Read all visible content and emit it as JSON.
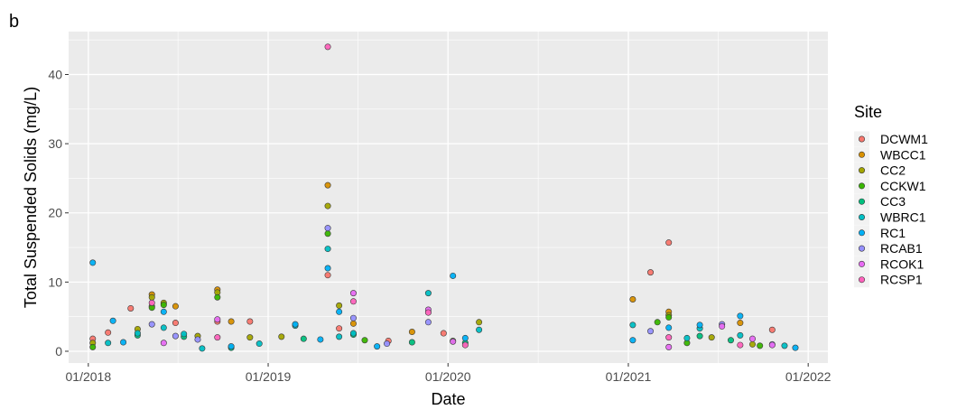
{
  "chart_data": {
    "type": "scatter",
    "panel_tag": "b",
    "xlabel": "Date",
    "ylabel": "Total Suspended Solids (mg/L)",
    "x_axis": {
      "scale": "date",
      "range": [
        "2017-11-22",
        "2022-02-10"
      ],
      "ticks": [
        {
          "date": "2018-01-01",
          "label": "01/2018"
        },
        {
          "date": "2019-01-01",
          "label": "01/2019"
        },
        {
          "date": "2020-01-01",
          "label": "01/2020"
        },
        {
          "date": "2021-01-01",
          "label": "01/2021"
        },
        {
          "date": "2022-01-01",
          "label": "01/2022"
        }
      ],
      "minor_gridlines": [
        "2018-07-02",
        "2019-07-02",
        "2020-07-02",
        "2021-07-02"
      ]
    },
    "y_axis": {
      "ylim": [
        -1.7,
        46.2
      ],
      "ticks": [
        0,
        10,
        20,
        30,
        40
      ],
      "minor_gridlines": [
        5,
        15,
        25,
        35,
        45
      ]
    },
    "grid": true,
    "legend": {
      "title": "Site",
      "position": "right"
    },
    "series": [
      {
        "name": "DCWM1",
        "color": "#F8766D",
        "points": [
          [
            "2018-01-10",
            1.8
          ],
          [
            "2018-02-10",
            2.7
          ],
          [
            "2018-03-28",
            6.2
          ],
          [
            "2018-05-10",
            6.5
          ],
          [
            "2018-06-27",
            4.1
          ],
          [
            "2018-09-20",
            4.3
          ],
          [
            "2018-11-25",
            4.3
          ],
          [
            "2019-05-02",
            11.0
          ],
          [
            "2019-05-25",
            3.3
          ],
          [
            "2019-09-02",
            1.5
          ],
          [
            "2019-12-23",
            2.6
          ],
          [
            "2021-02-15",
            11.4
          ],
          [
            "2021-03-24",
            15.7
          ],
          [
            "2021-10-20",
            3.1
          ]
        ]
      },
      {
        "name": "WBCC1",
        "color": "#D89000",
        "points": [
          [
            "2018-05-10",
            8.2
          ],
          [
            "2018-06-27",
            6.5
          ],
          [
            "2018-09-20",
            8.9
          ],
          [
            "2018-10-18",
            4.3
          ],
          [
            "2019-05-02",
            24.0
          ],
          [
            "2019-06-23",
            4.0
          ],
          [
            "2019-10-20",
            2.8
          ],
          [
            "2021-01-10",
            7.5
          ],
          [
            "2021-03-24",
            5.7
          ],
          [
            "2021-08-16",
            4.1
          ]
        ]
      },
      {
        "name": "CC2",
        "color": "#A3A500",
        "points": [
          [
            "2018-01-10",
            1.2
          ],
          [
            "2018-04-11",
            3.2
          ],
          [
            "2018-05-10",
            7.8
          ],
          [
            "2018-06-03",
            7.0
          ],
          [
            "2018-08-11",
            2.2
          ],
          [
            "2018-09-20",
            8.5
          ],
          [
            "2018-11-25",
            2.0
          ],
          [
            "2019-01-28",
            2.1
          ],
          [
            "2019-05-02",
            21.0
          ],
          [
            "2019-05-25",
            6.6
          ],
          [
            "2020-03-04",
            4.2
          ],
          [
            "2021-03-24",
            5.2
          ],
          [
            "2021-06-19",
            2.0
          ],
          [
            "2021-09-10",
            1.0
          ]
        ]
      },
      {
        "name": "CCKW1",
        "color": "#39B600",
        "points": [
          [
            "2018-01-10",
            0.6
          ],
          [
            "2018-05-10",
            6.3
          ],
          [
            "2018-06-03",
            6.7
          ],
          [
            "2018-09-20",
            7.8
          ],
          [
            "2019-05-02",
            17.0
          ],
          [
            "2019-07-16",
            1.6
          ],
          [
            "2020-01-11",
            1.5
          ],
          [
            "2021-03-01",
            4.2
          ],
          [
            "2021-03-24",
            4.9
          ],
          [
            "2021-04-30",
            1.2
          ],
          [
            "2021-09-25",
            0.8
          ]
        ]
      },
      {
        "name": "CC3",
        "color": "#00BF7D",
        "points": [
          [
            "2018-04-11",
            2.3
          ],
          [
            "2018-07-14",
            2.1
          ],
          [
            "2018-10-18",
            0.5
          ],
          [
            "2019-03-14",
            1.8
          ],
          [
            "2019-06-23",
            2.4
          ],
          [
            "2019-10-20",
            1.3
          ],
          [
            "2020-02-05",
            1.2
          ],
          [
            "2021-05-26",
            2.2
          ],
          [
            "2021-07-28",
            1.6
          ]
        ]
      },
      {
        "name": "WBRC1",
        "color": "#00BFC4",
        "points": [
          [
            "2018-02-10",
            1.2
          ],
          [
            "2018-04-11",
            2.6
          ],
          [
            "2018-06-03",
            3.4
          ],
          [
            "2018-07-14",
            2.5
          ],
          [
            "2018-08-20",
            0.4
          ],
          [
            "2018-12-14",
            1.1
          ],
          [
            "2019-02-25",
            3.7
          ],
          [
            "2019-05-02",
            14.8
          ],
          [
            "2019-05-25",
            2.1
          ],
          [
            "2019-06-23",
            2.6
          ],
          [
            "2019-11-22",
            8.4
          ],
          [
            "2020-03-04",
            3.1
          ],
          [
            "2021-01-10",
            3.8
          ],
          [
            "2021-04-30",
            1.9
          ],
          [
            "2021-05-26",
            3.3
          ],
          [
            "2021-08-16",
            2.3
          ],
          [
            "2021-11-14",
            0.8
          ]
        ]
      },
      {
        "name": "RC1",
        "color": "#00B0F6",
        "points": [
          [
            "2018-01-10",
            12.8
          ],
          [
            "2018-02-20",
            4.4
          ],
          [
            "2018-03-13",
            1.3
          ],
          [
            "2018-06-03",
            5.7
          ],
          [
            "2018-10-18",
            0.7
          ],
          [
            "2019-02-25",
            3.9
          ],
          [
            "2019-04-17",
            1.7
          ],
          [
            "2019-05-02",
            12.0
          ],
          [
            "2019-05-25",
            5.7
          ],
          [
            "2019-08-10",
            0.7
          ],
          [
            "2020-01-11",
            10.9
          ],
          [
            "2020-02-05",
            1.9
          ],
          [
            "2021-01-10",
            1.6
          ],
          [
            "2021-03-24",
            3.4
          ],
          [
            "2021-05-26",
            3.8
          ],
          [
            "2021-08-16",
            5.1
          ],
          [
            "2021-12-06",
            0.5
          ]
        ]
      },
      {
        "name": "RCAB1",
        "color": "#9590FF",
        "points": [
          [
            "2018-05-10",
            3.9
          ],
          [
            "2018-06-27",
            2.2
          ],
          [
            "2018-08-11",
            1.7
          ],
          [
            "2019-05-02",
            17.8
          ],
          [
            "2019-06-23",
            4.8
          ],
          [
            "2019-08-30",
            1.1
          ],
          [
            "2019-11-22",
            4.2
          ],
          [
            "2021-02-15",
            2.9
          ],
          [
            "2021-07-10",
            3.9
          ],
          [
            "2021-10-20",
            1.0
          ]
        ]
      },
      {
        "name": "RCOK1",
        "color": "#E76BF3",
        "points": [
          [
            "2018-06-03",
            1.2
          ],
          [
            "2018-09-20",
            4.6
          ],
          [
            "2019-06-23",
            8.4
          ],
          [
            "2019-11-22",
            6.0
          ],
          [
            "2020-01-11",
            1.4
          ],
          [
            "2021-03-24",
            0.6
          ],
          [
            "2021-07-10",
            3.6
          ],
          [
            "2021-09-10",
            1.8
          ],
          [
            "2021-10-20",
            0.9
          ]
        ]
      },
      {
        "name": "RCSP1",
        "color": "#FF62BC",
        "points": [
          [
            "2018-05-10",
            7.0
          ],
          [
            "2018-09-20",
            2.0
          ],
          [
            "2019-05-02",
            44.0
          ],
          [
            "2019-06-23",
            7.2
          ],
          [
            "2019-11-22",
            5.6
          ],
          [
            "2020-02-05",
            0.9
          ],
          [
            "2021-03-24",
            2.0
          ],
          [
            "2021-08-16",
            0.9
          ]
        ]
      }
    ]
  }
}
